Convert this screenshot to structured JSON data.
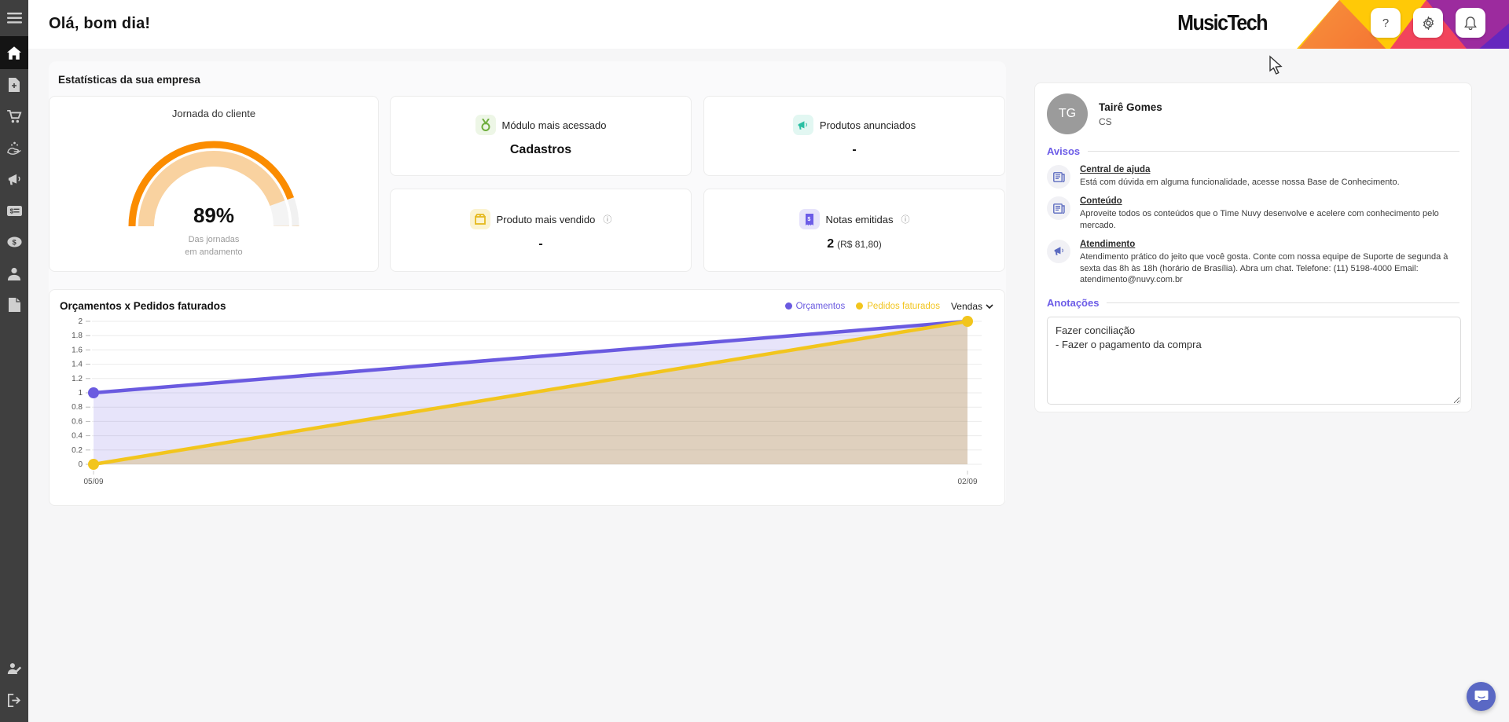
{
  "app": {
    "greeting": "Olá, bom dia!",
    "logo": "MusicTech"
  },
  "topbar": {
    "help_label": "?",
    "icons": [
      "help-icon",
      "gear-icon",
      "bell-icon"
    ]
  },
  "sidebar": {
    "items": [
      {
        "icon": "menu-icon"
      },
      {
        "icon": "home-icon",
        "active": true
      },
      {
        "icon": "document-plus-icon"
      },
      {
        "icon": "cart-icon"
      },
      {
        "icon": "hand-coins-icon"
      },
      {
        "icon": "megaphone-icon"
      },
      {
        "icon": "money-check-icon"
      },
      {
        "icon": "dollar-coin-icon"
      },
      {
        "icon": "person-icon"
      },
      {
        "icon": "file-icon"
      },
      {
        "icon": "person-edit-icon"
      },
      {
        "icon": "logout-icon"
      }
    ]
  },
  "stats": {
    "section_title": "Estatísticas da sua empresa",
    "gauge": {
      "title": "Jornada do cliente",
      "value": "89%",
      "percent": 89,
      "caption_line1": "Das jornadas",
      "caption_line2": "em andamento",
      "arc_color": "#fb8c00",
      "arc_inner_color": "#f9d2a0",
      "track_color": "#f1f1f1"
    },
    "cards": [
      {
        "label": "Módulo mais acessado",
        "value": "Cadastros",
        "value_suffix": "",
        "info": "",
        "icon": "medal-icon",
        "icon_color": "#6fae3e",
        "icon_bg": "#edf6e6"
      },
      {
        "label": "Produtos anunciados",
        "value": "-",
        "value_suffix": "",
        "info": "",
        "icon": "megaphone-icon",
        "icon_color": "#2bbfa3",
        "icon_bg": "#e2f7f2"
      },
      {
        "label": "Produto mais vendido",
        "value": "-",
        "value_suffix": "",
        "info": "ⓘ",
        "icon": "package-icon",
        "icon_color": "#e5b91e",
        "icon_bg": "#fbf3cf"
      },
      {
        "label": "Notas emitidas",
        "value": "2",
        "value_suffix": "(R$ 81,80)",
        "info": "ⓘ",
        "icon": "receipt-icon",
        "icon_color": "#6c5ce7",
        "icon_bg": "#e6e3fb"
      }
    ]
  },
  "chart_data": {
    "type": "line",
    "title": "Orçamentos x Pedidos faturados",
    "x": [
      "05/09",
      "02/09"
    ],
    "series": [
      {
        "name": "Orçamentos",
        "color": "#6a5ae0",
        "fill": "rgba(106,90,224,0.16)",
        "values": [
          1,
          2
        ]
      },
      {
        "name": "Pedidos faturados",
        "color": "#f2c51d",
        "fill": "rgba(204,168,66,0.32)",
        "values": [
          0,
          2
        ]
      }
    ],
    "ylim": [
      0,
      2
    ],
    "ytick_step": 0.2,
    "grid": "horizontal",
    "legend_position": "top-right",
    "filter_label": "Vendas"
  },
  "profile": {
    "initials": "TG",
    "name": "Tairê Gomes",
    "role": "CS"
  },
  "avisos": {
    "title": "Avisos",
    "items": [
      {
        "icon": "news-icon",
        "title": "Central de ajuda",
        "text": "Está com dúvida em alguma funcionalidade, acesse nossa Base de Conhecimento."
      },
      {
        "icon": "news-icon",
        "title": "Conteúdo",
        "text": "Aproveite todos os conteúdos que o Time Nuvy desenvolve e acelere com conhecimento pelo mercado."
      },
      {
        "icon": "megaphone-icon",
        "title": "Atendimento",
        "text": "Atendimento prático do jeito que você gosta. Conte com nossa equipe de Suporte de segunda à sexta das 8h às 18h (horário de Brasília). Abra um chat. Telefone: (11) 5198-4000 Email: atendimento@nuvy.com.br"
      }
    ]
  },
  "anotacoes": {
    "title": "Anotações",
    "value": "Fazer conciliação\n- Fazer o pagamento da compra"
  }
}
